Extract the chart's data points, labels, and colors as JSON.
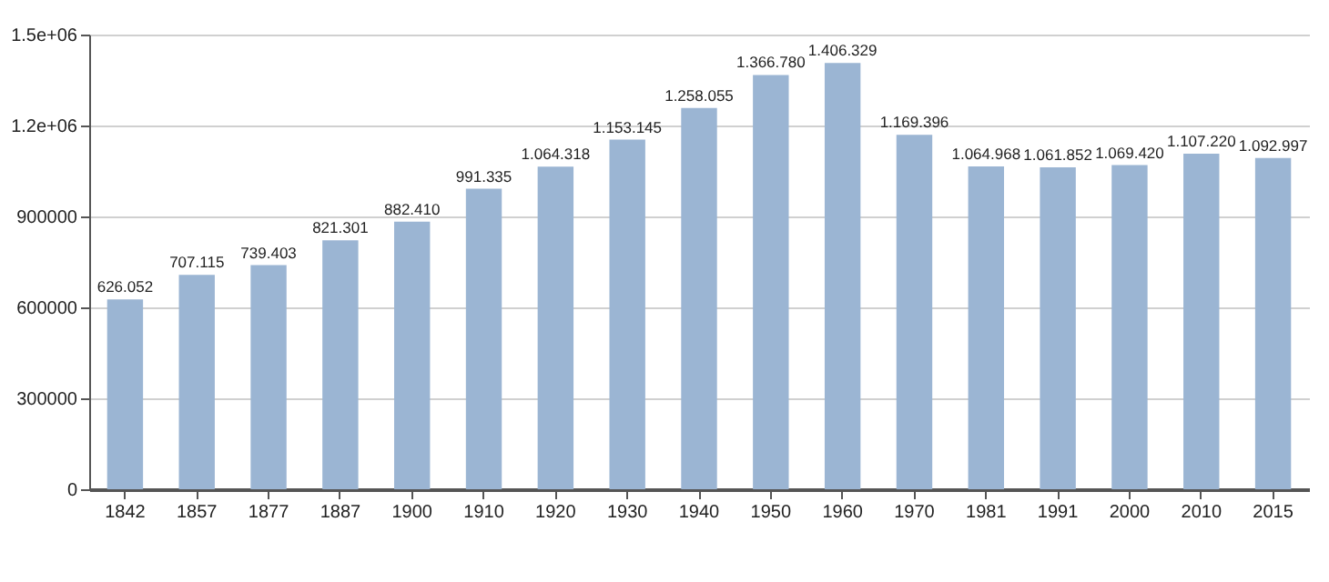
{
  "chart_data": {
    "type": "bar",
    "categories": [
      "1842",
      "1857",
      "1877",
      "1887",
      "1900",
      "1910",
      "1920",
      "1930",
      "1940",
      "1950",
      "1960",
      "1970",
      "1981",
      "1991",
      "2000",
      "2010",
      "2015"
    ],
    "values": [
      626052,
      707115,
      739403,
      821301,
      882410,
      991335,
      1064318,
      1153145,
      1258055,
      1366780,
      1406329,
      1169396,
      1064968,
      1061852,
      1069420,
      1107220,
      1092997
    ],
    "value_labels": [
      "626.052",
      "707.115",
      "739.403",
      "821.301",
      "882.410",
      "991.335",
      "1.064.318",
      "1.153.145",
      "1.258.055",
      "1.366.780",
      "1.406.329",
      "1.169.396",
      "1.064.968",
      "1.061.852",
      "1.069.420",
      "1.107.220",
      "1.092.997"
    ],
    "color": "#9bb5d3",
    "ylim": [
      0,
      1500000
    ],
    "yticks": [
      0,
      300000,
      600000,
      900000,
      {
        "value": 1200000,
        "label": "1.2e+06"
      },
      {
        "value": 1500000,
        "label": "1.5e+06"
      }
    ],
    "grid": "y"
  }
}
